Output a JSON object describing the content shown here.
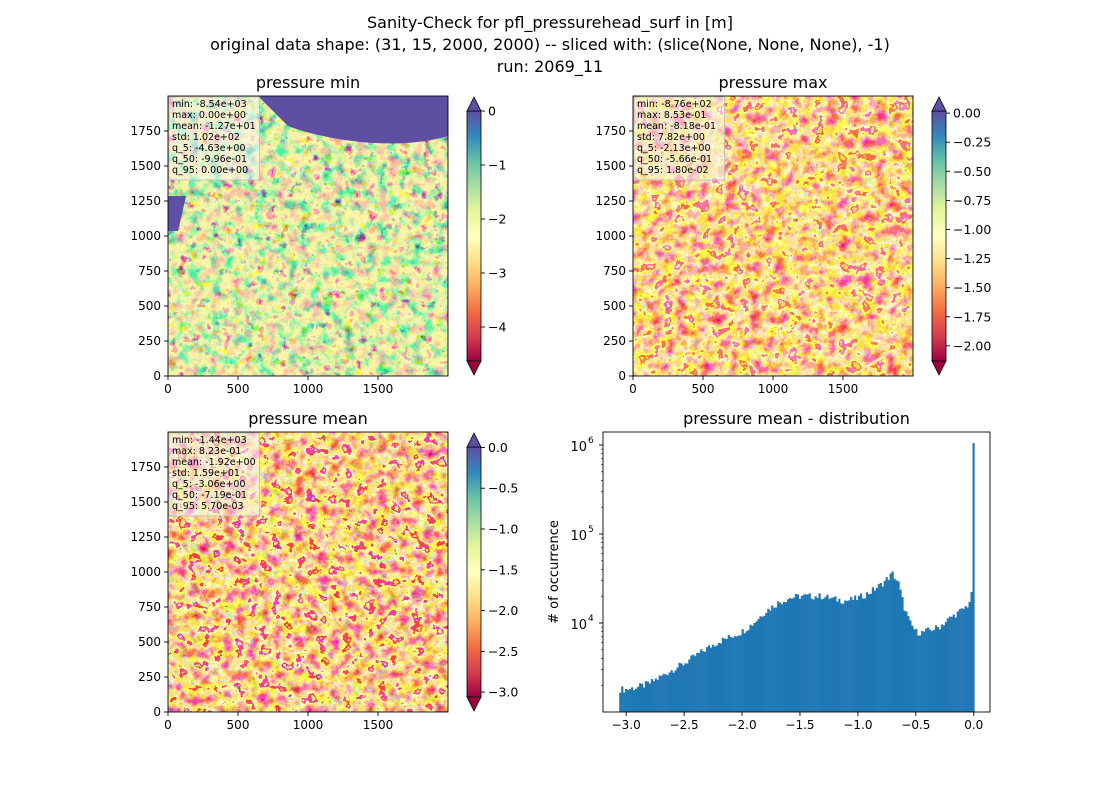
{
  "figure": {
    "title_lines": [
      "Sanity-Check for pfl_pressurehead_surf in [m]",
      "original data shape: (31, 15, 2000, 2000) -- sliced with: (slice(None, None, None), -1)",
      "run: 2069_11"
    ]
  },
  "chart_data": [
    {
      "type": "heatmap",
      "title": "pressure min",
      "xlim": [
        0,
        2000
      ],
      "ylim": [
        0,
        2000
      ],
      "x_ticks": [
        0,
        500,
        1000,
        1500
      ],
      "y_ticks": [
        0,
        250,
        500,
        750,
        1000,
        1250,
        1500,
        1750
      ],
      "colormap": "Spectral",
      "colorbar": {
        "vmin": -4.63,
        "vmax": 0.0,
        "ticks": [
          "0",
          "−1",
          "−2",
          "−3",
          "−4"
        ],
        "tick_values": [
          0,
          -1,
          -2,
          -3,
          -4
        ],
        "extend": "both"
      },
      "stats_box": [
        "min: -8.54e+03",
        "max: 0.00e+00",
        "mean: -1.27e+01",
        "std: 1.02e+02",
        "q_5: -4.63e+00",
        "q_50: -9.96e-01",
        "q_95: 0.00e+00"
      ]
    },
    {
      "type": "heatmap",
      "title": "pressure max",
      "xlim": [
        0,
        2000
      ],
      "ylim": [
        0,
        2000
      ],
      "x_ticks": [
        0,
        500,
        1000,
        1500
      ],
      "y_ticks": [
        0,
        250,
        500,
        750,
        1000,
        1250,
        1500,
        1750
      ],
      "colormap": "Spectral",
      "colorbar": {
        "vmin": -2.13,
        "vmax": 0.018,
        "ticks": [
          "0.00",
          "−0.25",
          "−0.50",
          "−0.75",
          "−1.00",
          "−1.25",
          "−1.50",
          "−1.75",
          "−2.00"
        ],
        "tick_values": [
          0,
          -0.25,
          -0.5,
          -0.75,
          -1.0,
          -1.25,
          -1.5,
          -1.75,
          -2.0
        ],
        "extend": "both"
      },
      "stats_box": [
        "min: -8.76e+02",
        "max: 8.53e-01",
        "mean: -8.18e-01",
        "std: 7.82e+00",
        "q_5: -2.13e+00",
        "q_50: -5.66e-01",
        "q_95: 1.80e-02"
      ]
    },
    {
      "type": "heatmap",
      "title": "pressure mean",
      "xlim": [
        0,
        2000
      ],
      "ylim": [
        0,
        2000
      ],
      "x_ticks": [
        0,
        500,
        1000,
        1500
      ],
      "y_ticks": [
        0,
        250,
        500,
        750,
        1000,
        1250,
        1500,
        1750
      ],
      "colormap": "Spectral",
      "colorbar": {
        "vmin": -3.06,
        "vmax": 0.0057,
        "ticks": [
          "0.0",
          "−0.5",
          "−1.0",
          "−1.5",
          "−2.0",
          "−2.5",
          "−3.0"
        ],
        "tick_values": [
          0,
          -0.5,
          -1.0,
          -1.5,
          -2.0,
          -2.5,
          -3.0
        ],
        "extend": "both"
      },
      "stats_box": [
        "min: -1.44e+03",
        "max: 8.23e-01",
        "mean: -1.92e+00",
        "std: 1.59e+01",
        "q_5: -3.06e+00",
        "q_50: -7.19e-01",
        "q_95: 5.70e-03"
      ]
    },
    {
      "type": "bar",
      "title": "pressure mean - distribution",
      "ylabel": "# of occurrence",
      "xlabel": "",
      "yscale": "log",
      "xlim": [
        -3.2,
        0.14
      ],
      "ylim": [
        1000,
        1400000
      ],
      "x_ticks": [
        -3.0,
        -2.5,
        -2.0,
        -1.5,
        -1.0,
        -0.5,
        0.0
      ],
      "x_tick_labels": [
        "−3.0",
        "−2.5",
        "−2.0",
        "−1.5",
        "−1.0",
        "−0.5",
        "0.0"
      ],
      "y_ticks": [
        10000,
        100000,
        1000000
      ],
      "y_tick_labels": [
        "10",
        "10",
        "10"
      ],
      "y_tick_exponents": [
        "4",
        "5",
        "6"
      ],
      "color": "#1f77b4",
      "bin_range": [
        -3.06,
        0.0057
      ],
      "profile_x": [
        -3.06,
        -3.0,
        -2.9,
        -2.8,
        -2.7,
        -2.6,
        -2.5,
        -2.4,
        -2.3,
        -2.2,
        -2.1,
        -2.0,
        -1.9,
        -1.8,
        -1.7,
        -1.6,
        -1.5,
        -1.4,
        -1.3,
        -1.2,
        -1.1,
        -1.0,
        -0.9,
        -0.8,
        -0.7,
        -0.65,
        -0.6,
        -0.55,
        -0.5,
        -0.45,
        -0.4,
        -0.3,
        -0.2,
        -0.1,
        -0.05,
        -0.02,
        0.0
      ],
      "profile_y": [
        1800,
        1800,
        1900,
        2100,
        2500,
        3000,
        3500,
        4300,
        5200,
        6200,
        7000,
        8000,
        10000,
        13500,
        16500,
        19000,
        20000,
        20000,
        20000,
        18500,
        17800,
        19000,
        22000,
        27000,
        36000,
        28000,
        15000,
        10000,
        8000,
        7800,
        8200,
        9000,
        11500,
        14000,
        16000,
        20000,
        1050000
      ]
    }
  ]
}
